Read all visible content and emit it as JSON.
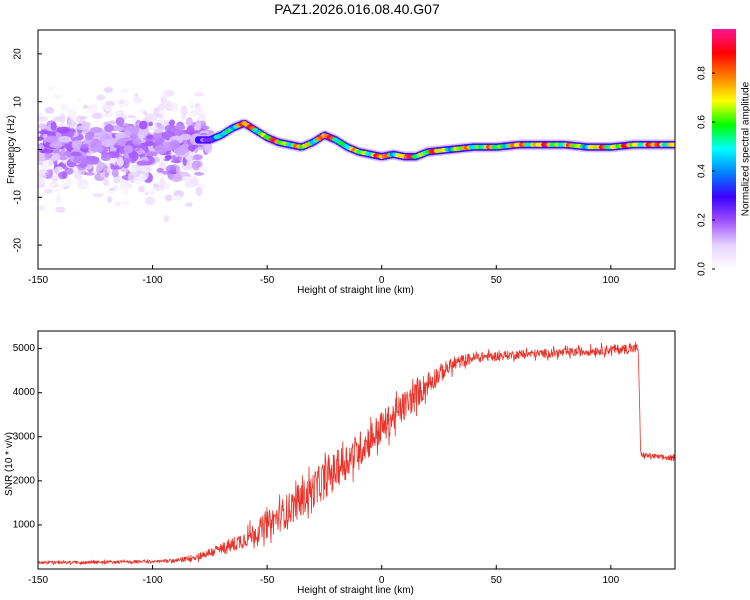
{
  "title": "PAZ1.2026.016.08.40.G07",
  "colors": {
    "line": "#e8332a",
    "axis": "#000000",
    "background": "#ffffff"
  },
  "chart_data": [
    {
      "type": "heatmap",
      "name": "spectrogram",
      "xlabel": "Height of straight line (km)",
      "ylabel": "Frequency (Hz)",
      "xlim": [
        -150,
        128
      ],
      "ylim": [
        -25,
        25
      ],
      "xticks": [
        -150,
        -100,
        -50,
        0,
        50,
        100
      ],
      "yticks": [
        -20,
        -10,
        0,
        10,
        20
      ],
      "colorbar": {
        "label": "Normalized spectral amplitude",
        "range": [
          0,
          0.98
        ],
        "ticks": [
          0.0,
          0.2,
          0.4,
          0.6,
          0.8
        ],
        "tick_labels": [
          "0.0",
          "0.2",
          "0.4",
          "0.6",
          "0.8"
        ],
        "colormap": [
          "#ffffff",
          "#e6d2ff",
          "#a050ff",
          "#3c00ff",
          "#0080ff",
          "#00ffff",
          "#00ff00",
          "#ffff00",
          "#ff8000",
          "#ff0000",
          "#ff1493"
        ]
      },
      "ridge": {
        "heights": [
          -150,
          -140,
          -130,
          -120,
          -110,
          -100,
          -90,
          -80,
          -75,
          -70,
          -65,
          -60,
          -55,
          -50,
          -45,
          -40,
          -35,
          -30,
          -25,
          -20,
          -15,
          -10,
          -5,
          0,
          5,
          10,
          15,
          20,
          30,
          40,
          50,
          60,
          70,
          80,
          90,
          100,
          110,
          120,
          128
        ],
        "frequency_hz": [
          1,
          2,
          0.5,
          1.5,
          2,
          1,
          2.5,
          2,
          2,
          3,
          4.5,
          5.5,
          4,
          2.5,
          1.5,
          1,
          0.5,
          1.5,
          3,
          2,
          0.5,
          -0.5,
          -1,
          -1.5,
          -1,
          -1.5,
          -1.5,
          -0.5,
          0,
          0.5,
          0.5,
          1,
          1,
          1,
          0.5,
          0.5,
          1,
          1,
          1
        ],
        "amplitude": [
          0.15,
          0.18,
          0.17,
          0.16,
          0.18,
          0.2,
          0.18,
          0.2,
          0.35,
          0.55,
          0.75,
          0.9,
          0.85,
          0.8,
          0.9,
          0.8,
          0.75,
          0.85,
          0.95,
          0.8,
          0.7,
          0.75,
          0.85,
          0.9,
          0.75,
          0.95,
          0.8,
          0.9,
          0.75,
          0.8,
          0.75,
          0.85,
          0.9,
          0.8,
          0.75,
          0.9,
          0.85,
          0.9,
          0.85
        ]
      }
    },
    {
      "type": "line",
      "name": "snr",
      "xlabel": "Height of straight line (km)",
      "ylabel": "SNR (10 * v/v)",
      "xlim": [
        -150,
        128
      ],
      "ylim": [
        0,
        5400
      ],
      "xticks": [
        -150,
        -100,
        -50,
        0,
        50,
        100
      ],
      "yticks": [
        1000,
        2000,
        3000,
        4000,
        5000
      ],
      "series": [
        {
          "name": "SNR",
          "x": [
            -150,
            -140,
            -130,
            -120,
            -110,
            -100,
            -90,
            -85,
            -80,
            -75,
            -70,
            -65,
            -60,
            -55,
            -50,
            -45,
            -40,
            -35,
            -30,
            -25,
            -20,
            -15,
            -10,
            -5,
            0,
            5,
            10,
            15,
            20,
            25,
            30,
            35,
            40,
            45,
            50,
            55,
            60,
            70,
            80,
            90,
            100,
            105,
            110,
            112,
            113,
            115,
            120,
            125,
            128
          ],
          "y": [
            150,
            150,
            150,
            160,
            160,
            170,
            190,
            230,
            290,
            370,
            450,
            550,
            680,
            830,
            1000,
            1180,
            1380,
            1580,
            1800,
            2020,
            2250,
            2480,
            2700,
            2950,
            3200,
            3450,
            3700,
            3950,
            4200,
            4420,
            4600,
            4720,
            4790,
            4820,
            4830,
            4850,
            4870,
            4890,
            4910,
            4940,
            4980,
            4990,
            5000,
            5000,
            2600,
            2580,
            2550,
            2520,
            2500
          ],
          "noise": [
            35,
            35,
            35,
            35,
            35,
            35,
            40,
            60,
            80,
            110,
            140,
            170,
            200,
            250,
            300,
            350,
            380,
            400,
            420,
            420,
            420,
            420,
            400,
            400,
            380,
            360,
            340,
            320,
            280,
            220,
            170,
            140,
            120,
            110,
            100,
            100,
            100,
            100,
            100,
            100,
            110,
            110,
            110,
            110,
            60,
            60,
            60,
            60,
            60
          ]
        }
      ]
    }
  ]
}
